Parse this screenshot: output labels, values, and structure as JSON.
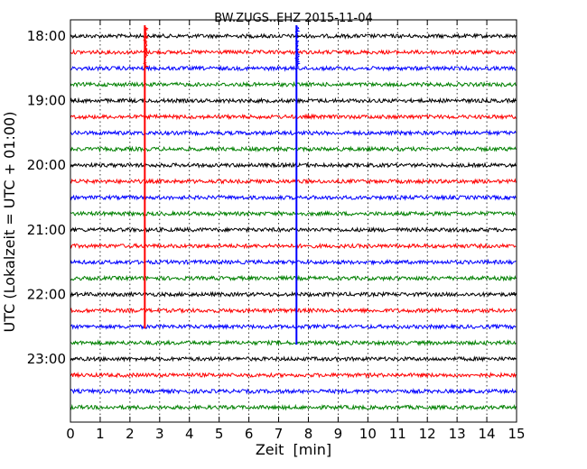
{
  "chart_data": {
    "type": "line",
    "title": "BW.ZUGS..EHZ 2015-11-04",
    "xlabel": "Zeit  [min]",
    "ylabel": "UTC (Lokalzeit = UTC + 01:00)",
    "xlim": [
      0,
      15
    ],
    "x_ticks": [
      "0",
      "1",
      "2",
      "3",
      "4",
      "5",
      "6",
      "7",
      "8",
      "9",
      "10",
      "11",
      "12",
      "13",
      "14",
      "15"
    ],
    "y_ticks": [
      "18:00",
      "19:00",
      "20:00",
      "21:00",
      "22:00",
      "23:00"
    ],
    "row_interval_minutes": 15,
    "first_row": "18:00",
    "last_row": "23:45",
    "trace_colors": [
      "#000000",
      "#ff0000",
      "#0000ff",
      "#008000"
    ],
    "x_grid": "dotted",
    "events": [
      {
        "minute": 2.5,
        "from_row": "18:00",
        "to_row": "22:30",
        "color": "#ff0000"
      },
      {
        "minute": 7.6,
        "from_row": "18:00",
        "to_row": "22:45",
        "color": "#0000ff"
      }
    ]
  }
}
